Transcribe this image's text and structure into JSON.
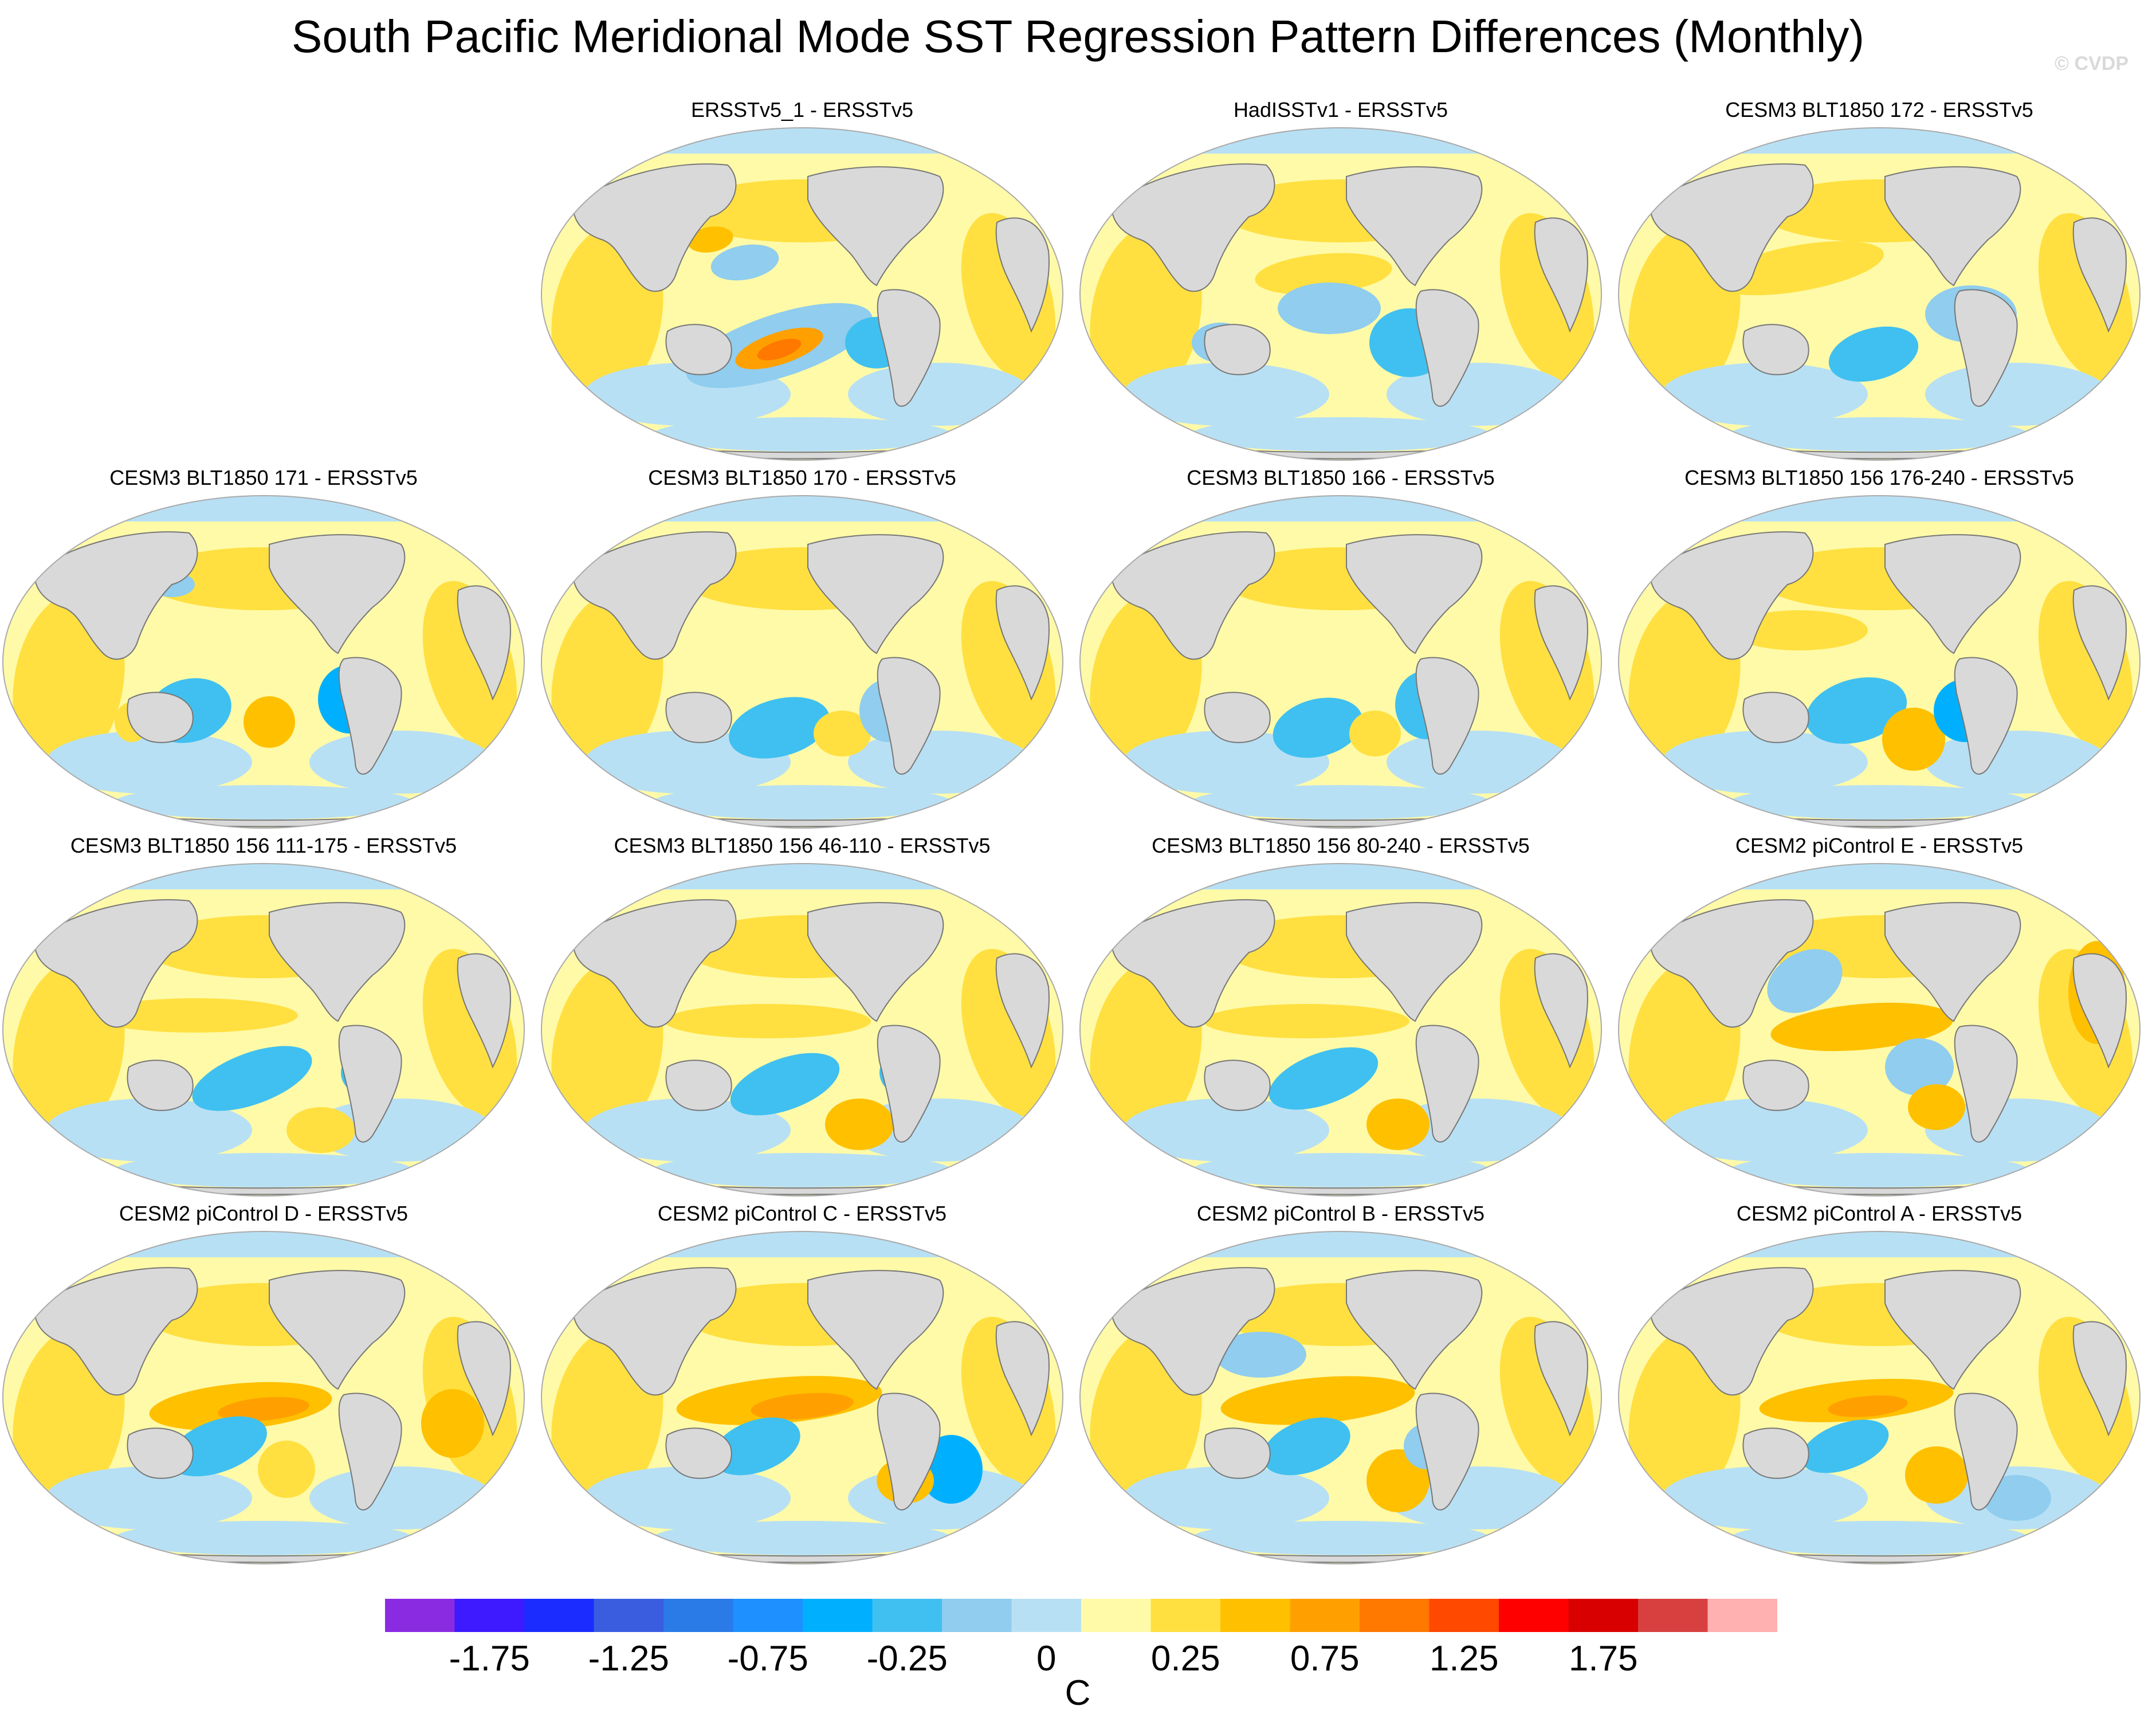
{
  "title": "South Pacific Meridional Mode SST Regression Pattern Differences (Monthly)",
  "watermark": "© CVDP",
  "colors": {
    "land": "#d9d9d9",
    "coast": "#777777",
    "ocean_neutral": "#fffaa8"
  },
  "panels": [
    {
      "id": "p1",
      "title": "ERSSTv5_1 - ERSSTv5"
    },
    {
      "id": "p2",
      "title": "HadISSTv1 - ERSSTv5"
    },
    {
      "id": "p3",
      "title": "CESM3 BLT1850 172 - ERSSTv5"
    },
    {
      "id": "p4",
      "title": "CESM3 BLT1850 171 - ERSSTv5"
    },
    {
      "id": "p5",
      "title": "CESM3 BLT1850 170 - ERSSTv5"
    },
    {
      "id": "p6",
      "title": "CESM3 BLT1850 166 - ERSSTv5"
    },
    {
      "id": "p7",
      "title": "CESM3 BLT1850 156 176-240 - ERSSTv5"
    },
    {
      "id": "p8",
      "title": "CESM3 BLT1850 156 111-175 - ERSSTv5"
    },
    {
      "id": "p9",
      "title": "CESM3 BLT1850 156 46-110 - ERSSTv5"
    },
    {
      "id": "p10",
      "title": "CESM3 BLT1850 156 80-240 - ERSSTv5"
    },
    {
      "id": "p11",
      "title": "CESM2 piControl E - ERSSTv5"
    },
    {
      "id": "p12",
      "title": "CESM2 piControl D - ERSSTv5"
    },
    {
      "id": "p13",
      "title": "CESM2 piControl C - ERSSTv5"
    },
    {
      "id": "p14",
      "title": "CESM2 piControl B - ERSSTv5"
    },
    {
      "id": "p15",
      "title": "CESM2 piControl A - ERSSTv5"
    }
  ],
  "colorbar": {
    "units": "C",
    "colors": [
      "#8a2be2",
      "#3d1aff",
      "#1a2cff",
      "#3a5de0",
      "#2a7ae8",
      "#1e90ff",
      "#00b0ff",
      "#40c0f0",
      "#90cdee",
      "#b8e0f4",
      "#fffaa8",
      "#ffe040",
      "#ffc000",
      "#ffa000",
      "#ff7800",
      "#ff4800",
      "#ff0000",
      "#d80000",
      "#d84040",
      "#ffb0b0"
    ],
    "tick_labels": [
      "-1.75",
      "-1.25",
      "-0.75",
      "-0.25",
      "0",
      "0.25",
      "0.75",
      "1.25",
      "1.75"
    ]
  }
}
